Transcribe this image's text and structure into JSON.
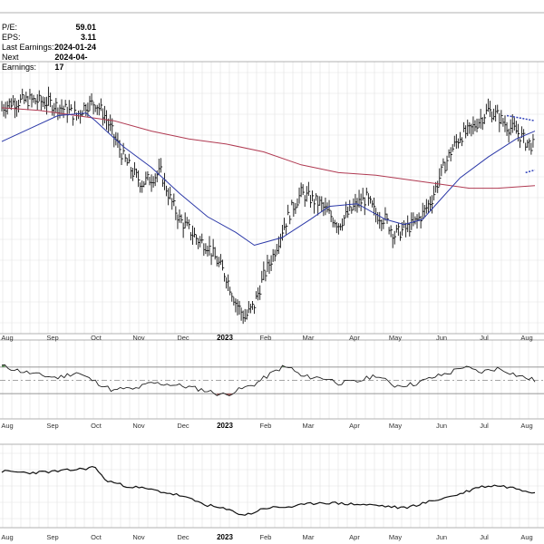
{
  "stats": [
    {
      "label": "P/E:",
      "value": "59.01"
    },
    {
      "label": "EPS:",
      "value": "3.11"
    },
    {
      "label": "Last Earnings:",
      "value": "2024-01-24"
    },
    {
      "label": "Next Earnings:",
      "value": "2024-04-17"
    }
  ],
  "chart_data": {
    "type": "line",
    "title": "",
    "xlabel": "",
    "ylabel": "",
    "grid": true,
    "legend": "none",
    "x_ticks": [
      {
        "label": "Aug",
        "bold": false
      },
      {
        "label": "Sep",
        "bold": false
      },
      {
        "label": "Oct",
        "bold": false
      },
      {
        "label": "Nov",
        "bold": false
      },
      {
        "label": "Dec",
        "bold": false
      },
      {
        "label": "2023",
        "bold": true
      },
      {
        "label": "Feb",
        "bold": false
      },
      {
        "label": "Mar",
        "bold": false
      },
      {
        "label": "Apr",
        "bold": false
      },
      {
        "label": "May",
        "bold": false
      },
      {
        "label": "Jun",
        "bold": false
      },
      {
        "label": "Jul",
        "bold": false
      },
      {
        "label": "Aug",
        "bold": false
      }
    ],
    "price_panel": {
      "type": "ohlc",
      "ylim": [
        0,
        100
      ],
      "weeks": 58,
      "price_points": [
        [
          0,
          85
        ],
        [
          1,
          87
        ],
        [
          3,
          88
        ],
        [
          5,
          87
        ],
        [
          7,
          84
        ],
        [
          8,
          82
        ],
        [
          9,
          86
        ],
        [
          10,
          87
        ],
        [
          11,
          82
        ],
        [
          12,
          74
        ],
        [
          13,
          66
        ],
        [
          14,
          60
        ],
        [
          15,
          56
        ],
        [
          16,
          58
        ],
        [
          17,
          60
        ],
        [
          18,
          50
        ],
        [
          19,
          42
        ],
        [
          20,
          38
        ],
        [
          21,
          34
        ],
        [
          22,
          32
        ],
        [
          23,
          26
        ],
        [
          24,
          20
        ],
        [
          25,
          10
        ],
        [
          26,
          4
        ],
        [
          27,
          9
        ],
        [
          28,
          20
        ],
        [
          29,
          28
        ],
        [
          30,
          38
        ],
        [
          31,
          46
        ],
        [
          32,
          52
        ],
        [
          33,
          50
        ],
        [
          34,
          48
        ],
        [
          35,
          44
        ],
        [
          36,
          40
        ],
        [
          37,
          44
        ],
        [
          38,
          48
        ],
        [
          39,
          50
        ],
        [
          40,
          44
        ],
        [
          41,
          42
        ],
        [
          42,
          36
        ],
        [
          43,
          38
        ],
        [
          44,
          40
        ],
        [
          45,
          44
        ],
        [
          46,
          50
        ],
        [
          47,
          60
        ],
        [
          48,
          68
        ],
        [
          49,
          74
        ],
        [
          50,
          76
        ],
        [
          51,
          80
        ],
        [
          52,
          84
        ],
        [
          53,
          82
        ],
        [
          54,
          78
        ],
        [
          55,
          76
        ],
        [
          56,
          72
        ],
        [
          57,
          70
        ]
      ],
      "sma_50": [
        [
          0,
          72
        ],
        [
          3,
          77
        ],
        [
          6,
          82
        ],
        [
          9,
          83
        ],
        [
          10,
          80
        ],
        [
          13,
          70
        ],
        [
          16,
          62
        ],
        [
          19,
          52
        ],
        [
          22,
          43
        ],
        [
          25,
          37
        ],
        [
          27,
          32
        ],
        [
          28,
          33
        ],
        [
          30,
          35
        ],
        [
          33,
          42
        ],
        [
          35,
          47
        ],
        [
          38,
          48
        ],
        [
          41,
          42
        ],
        [
          43,
          40
        ],
        [
          45,
          42
        ],
        [
          47,
          50
        ],
        [
          49,
          58
        ],
        [
          52,
          66
        ],
        [
          55,
          73
        ],
        [
          57,
          76
        ]
      ],
      "sma_200": [
        [
          0,
          85
        ],
        [
          4,
          84
        ],
        [
          8,
          82
        ],
        [
          12,
          80
        ],
        [
          16,
          76
        ],
        [
          20,
          73
        ],
        [
          24,
          71
        ],
        [
          28,
          68
        ],
        [
          32,
          63
        ],
        [
          36,
          60
        ],
        [
          40,
          59
        ],
        [
          44,
          57
        ],
        [
          48,
          55
        ],
        [
          50,
          54
        ],
        [
          53,
          54
        ],
        [
          57,
          55
        ]
      ],
      "trendlines": [
        {
          "points": [
            [
              54,
              82
            ],
            [
              57,
              80
            ]
          ],
          "color": "#3344bb"
        },
        {
          "points": [
            [
              56,
              60
            ],
            [
              57,
              61
            ]
          ],
          "color": "#3344bb"
        }
      ]
    },
    "oscillator_panel": {
      "type": "line",
      "ylim": [
        0,
        100
      ],
      "upper": 70,
      "mid": 50,
      "lower": 30,
      "values": [
        [
          0,
          72
        ],
        [
          2,
          64
        ],
        [
          4,
          58
        ],
        [
          6,
          54
        ],
        [
          8,
          62
        ],
        [
          10,
          48
        ],
        [
          12,
          34
        ],
        [
          13,
          38
        ],
        [
          14,
          36
        ],
        [
          16,
          46
        ],
        [
          18,
          44
        ],
        [
          20,
          40
        ],
        [
          22,
          34
        ],
        [
          23,
          30
        ],
        [
          24,
          28
        ],
        [
          25,
          34
        ],
        [
          27,
          44
        ],
        [
          29,
          62
        ],
        [
          30,
          70
        ],
        [
          31,
          68
        ],
        [
          32,
          56
        ],
        [
          34,
          54
        ],
        [
          35,
          52
        ],
        [
          36,
          46
        ],
        [
          38,
          48
        ],
        [
          40,
          58
        ],
        [
          41,
          50
        ],
        [
          42,
          42
        ],
        [
          44,
          44
        ],
        [
          46,
          54
        ],
        [
          48,
          62
        ],
        [
          49,
          70
        ],
        [
          50,
          68
        ],
        [
          51,
          62
        ],
        [
          53,
          68
        ],
        [
          54,
          64
        ],
        [
          55,
          58
        ],
        [
          57,
          50
        ]
      ]
    },
    "relative_panel": {
      "type": "line",
      "ylim": [
        0,
        100
      ],
      "values": [
        [
          0,
          72
        ],
        [
          3,
          70
        ],
        [
          6,
          72
        ],
        [
          9,
          76
        ],
        [
          10,
          78
        ],
        [
          11,
          60
        ],
        [
          13,
          52
        ],
        [
          16,
          46
        ],
        [
          19,
          38
        ],
        [
          22,
          24
        ],
        [
          24,
          18
        ],
        [
          26,
          10
        ],
        [
          27,
          14
        ],
        [
          28,
          20
        ],
        [
          31,
          22
        ],
        [
          34,
          28
        ],
        [
          37,
          26
        ],
        [
          40,
          24
        ],
        [
          43,
          20
        ],
        [
          46,
          30
        ],
        [
          49,
          40
        ],
        [
          51,
          50
        ],
        [
          53,
          52
        ],
        [
          55,
          48
        ],
        [
          57,
          42
        ]
      ]
    }
  }
}
